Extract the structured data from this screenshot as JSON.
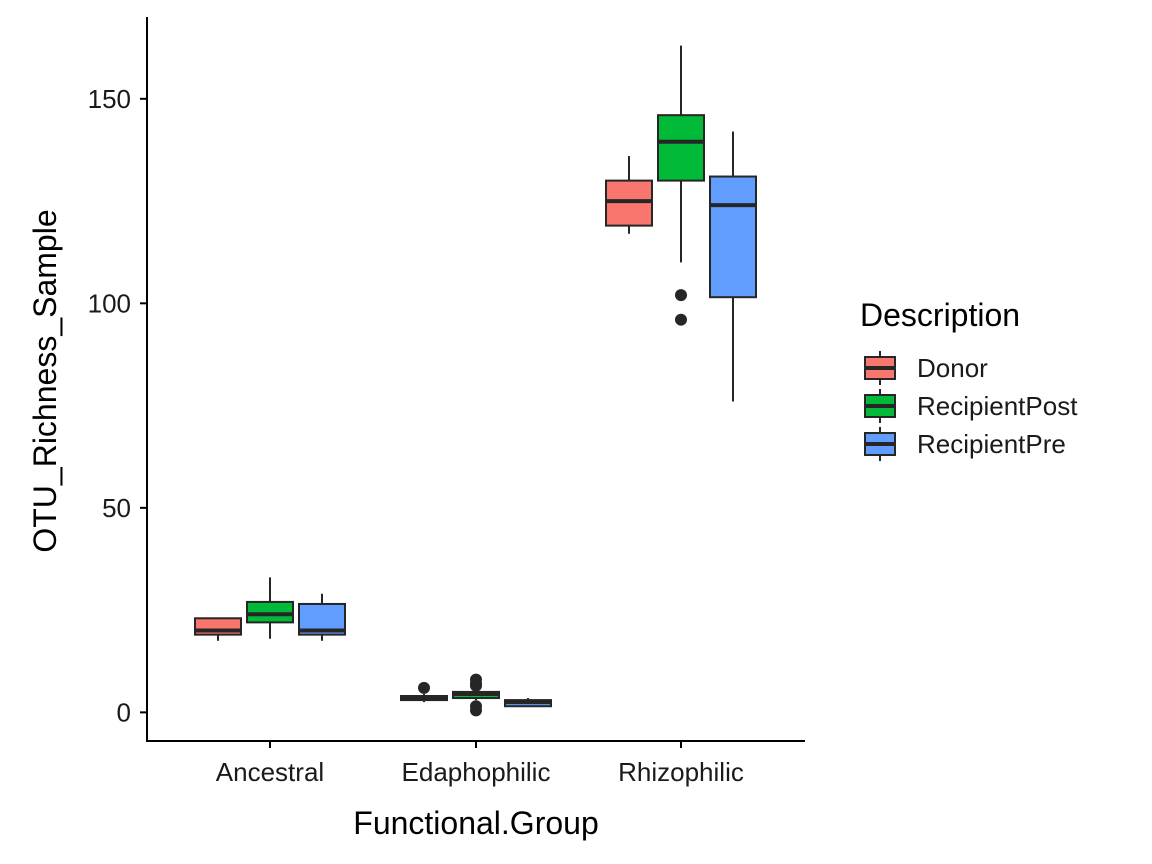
{
  "chart_data": {
    "type": "boxplot",
    "title": "",
    "xlabel": "Functional.Group",
    "ylabel": "OTU_Richness_Sample",
    "categories": [
      "Ancestral",
      "Edaphophilic",
      "Rhizophilic"
    ],
    "ylim": [
      -7,
      170
    ],
    "yticks": [
      0,
      50,
      100,
      150
    ],
    "grid": false,
    "legend": {
      "title": "Description",
      "placement": "right"
    },
    "series": [
      {
        "name": "Donor",
        "color": "#F8766D",
        "boxes": [
          {
            "category": "Ancestral",
            "min": 17.5,
            "q1": 19,
            "median": 20,
            "q3": 23,
            "max": 23,
            "outliers": []
          },
          {
            "category": "Edaphophilic",
            "min": 2.5,
            "q1": 3,
            "median": 3.5,
            "q3": 4,
            "max": 4.5,
            "outliers": [
              6
            ]
          },
          {
            "category": "Rhizophilic",
            "min": 117,
            "q1": 119,
            "median": 125,
            "q3": 130,
            "max": 136,
            "outliers": []
          }
        ]
      },
      {
        "name": "RecipientPost",
        "color": "#00BA38",
        "boxes": [
          {
            "category": "Ancestral",
            "min": 18,
            "q1": 22,
            "median": 24,
            "q3": 27,
            "max": 33,
            "outliers": []
          },
          {
            "category": "Edaphophilic",
            "min": 3,
            "q1": 3.5,
            "median": 4.5,
            "q3": 5,
            "max": 6,
            "outliers": [
              8,
              7,
              6.5,
              1.5,
              0.5
            ]
          },
          {
            "category": "Rhizophilic",
            "min": 110,
            "q1": 130,
            "median": 139.5,
            "q3": 146,
            "max": 163,
            "outliers": [
              102,
              96
            ]
          }
        ]
      },
      {
        "name": "RecipientPre",
        "color": "#619CFF",
        "boxes": [
          {
            "category": "Ancestral",
            "min": 17.5,
            "q1": 19,
            "median": 20,
            "q3": 26.5,
            "max": 29,
            "outliers": []
          },
          {
            "category": "Edaphophilic",
            "min": 1.5,
            "q1": 1.5,
            "median": 2.5,
            "q3": 3,
            "max": 3.5,
            "outliers": []
          },
          {
            "category": "Rhizophilic",
            "min": 76,
            "q1": 101.5,
            "median": 124,
            "q3": 131,
            "max": 142,
            "outliers": []
          }
        ]
      }
    ]
  }
}
